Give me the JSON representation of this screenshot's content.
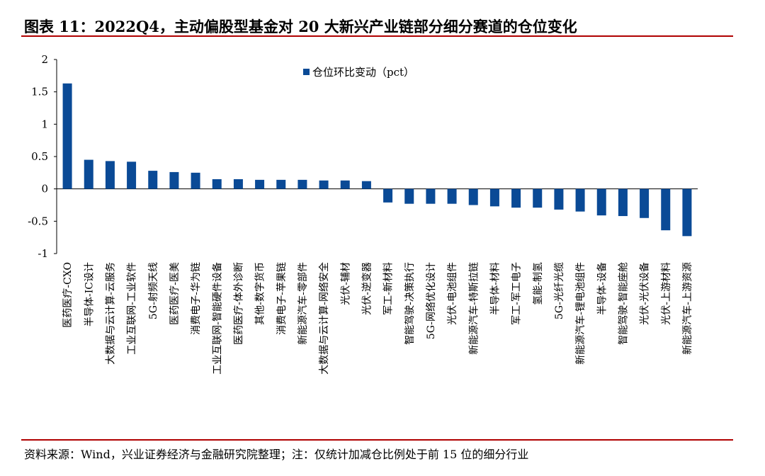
{
  "title": "图表 11：2022Q4，主动偏股型基金对 20 大新兴产业链部分细分赛道的仓位变化",
  "source": "资料来源：Wind，兴业证券经济与金融研究院整理；注：仅统计加减仓比例处于前 15 位的细分行业",
  "chart_data": {
    "type": "bar",
    "title": "",
    "xlabel": "",
    "ylabel": "",
    "ylim": [
      -1,
      2
    ],
    "yticks": [
      2,
      1.5,
      1,
      0.5,
      0,
      -0.5,
      -1
    ],
    "grid": false,
    "legend_position": "top-left",
    "bar_color": "#0a4a96",
    "categories": [
      "医药医疗-CXO",
      "半导体-IC设计",
      "大数据与云计算-云服务",
      "工业互联网-工业软件",
      "5G-射频天线",
      "医药医疗-医美",
      "消费电子-华为链",
      "工业互联网-智能硬件设备",
      "医药医疗-体外诊断",
      "其他-数字货币",
      "消费电子-苹果链",
      "新能源汽车-零部件",
      "大数据与云计算-网络安全",
      "光伏-辅材",
      "光伏-逆变器",
      "军工-新材料",
      "智能驾驶-决策执行",
      "5G-网络优化设计",
      "光伏-电池组件",
      "新能源汽车-特斯拉链",
      "半导体-材料",
      "军工-军工电子",
      "氢能-制氢",
      "5G-光纤光缆",
      "新能源汽车-锂电池组件",
      "半导体-设备",
      "智能驾驶-智能座舱",
      "光伏-光伏设备",
      "光伏-上游材料",
      "新能源汽车-上游资源"
    ],
    "series": [
      {
        "name": "仓位环比变动（pct）",
        "values": [
          1.63,
          0.45,
          0.43,
          0.42,
          0.28,
          0.26,
          0.25,
          0.15,
          0.15,
          0.14,
          0.14,
          0.14,
          0.13,
          0.13,
          0.12,
          -0.21,
          -0.23,
          -0.23,
          -0.23,
          -0.25,
          -0.27,
          -0.29,
          -0.29,
          -0.32,
          -0.35,
          -0.41,
          -0.42,
          -0.45,
          -0.64,
          -0.73
        ]
      }
    ]
  }
}
